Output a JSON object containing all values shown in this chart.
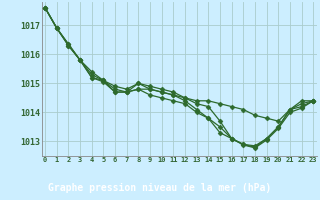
{
  "title": "Graphe pression niveau de la mer (hPa)",
  "hours": [
    0,
    1,
    2,
    3,
    4,
    5,
    6,
    7,
    8,
    9,
    10,
    11,
    12,
    13,
    14,
    15,
    16,
    17,
    18,
    19,
    20,
    21,
    22,
    23
  ],
  "series": [
    [
      1017.6,
      1016.9,
      1016.3,
      1015.8,
      1015.3,
      1015.1,
      1014.9,
      1014.8,
      1015.0,
      1014.8,
      1014.7,
      1014.6,
      1014.5,
      1014.4,
      1014.4,
      1014.3,
      1014.2,
      1014.1,
      1013.9,
      1013.8,
      1013.7,
      1014.1,
      1014.4,
      1014.4
    ],
    [
      1017.6,
      1016.9,
      1016.3,
      1015.8,
      1015.4,
      1015.1,
      1014.8,
      1014.7,
      1015.0,
      1014.9,
      1014.8,
      1014.7,
      1014.5,
      1014.3,
      1014.2,
      1013.7,
      1013.1,
      1012.9,
      1012.85,
      1013.1,
      1013.5,
      1014.1,
      1014.2,
      1014.4
    ],
    [
      1017.6,
      1016.9,
      1016.35,
      1015.8,
      1015.2,
      1015.1,
      1014.7,
      1014.7,
      1014.8,
      1014.6,
      1014.5,
      1014.4,
      1014.3,
      1014.0,
      1013.8,
      1013.3,
      1013.1,
      1012.9,
      1012.8,
      1013.1,
      1013.5,
      1014.1,
      1014.3,
      1014.4
    ],
    [
      1017.6,
      1016.9,
      1016.35,
      1015.8,
      1015.2,
      1015.05,
      1014.7,
      1014.7,
      1014.8,
      1014.8,
      1014.7,
      1014.6,
      1014.4,
      1014.1,
      1013.8,
      1013.5,
      1013.1,
      1012.88,
      1012.78,
      1013.05,
      1013.45,
      1014.0,
      1014.15,
      1014.4
    ]
  ],
  "line_color": "#2d6a2d",
  "marker_color": "#2d6a2d",
  "bg_color": "#cceeff",
  "grid_color": "#aacccc",
  "title_bg": "#336633",
  "title_fg": "#ffffff",
  "ylim": [
    1012.5,
    1017.8
  ],
  "yticks": [
    1013,
    1014,
    1015,
    1016,
    1017
  ],
  "markersize": 2.5,
  "linewidth": 0.9
}
